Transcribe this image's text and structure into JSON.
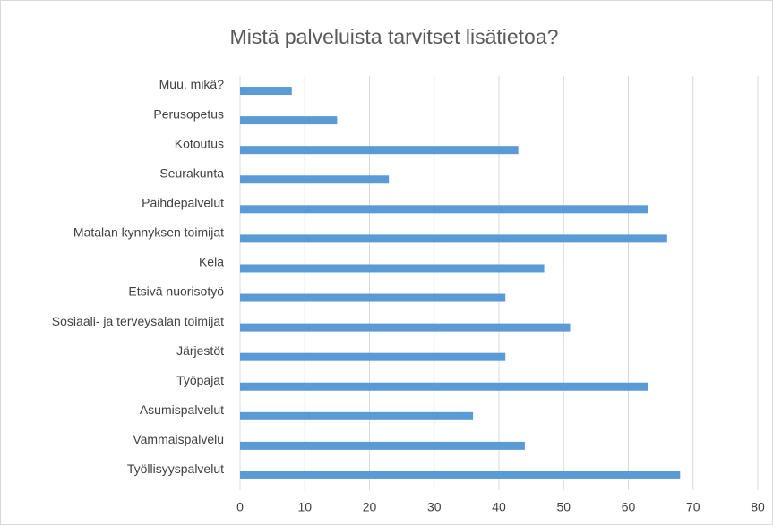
{
  "chart_data": {
    "type": "barh",
    "title": "Mistä palveluista tarvitset lisätietoa?",
    "categories": [
      "Muu, mikä?",
      "Perusopetus",
      "Kotoutus",
      "Seurakunta",
      "Päihdepalvelut",
      "Matalan kynnyksen toimijat",
      "Kela",
      "Etsivä nuorisotyö",
      "Sosiaali- ja terveysalan toimijat",
      "Järjestöt",
      "Työpajat",
      "Asumispalvelut",
      "Vammaispalvelu",
      "Työllisyyspalvelut"
    ],
    "values": [
      8,
      15,
      43,
      23,
      63,
      66,
      47,
      41,
      51,
      41,
      63,
      36,
      44,
      68
    ],
    "color": "#5b9bd5",
    "xlim": [
      0,
      80
    ],
    "xticks": [
      0,
      10,
      20,
      30,
      40,
      50,
      60,
      70,
      80
    ],
    "grid": true
  }
}
